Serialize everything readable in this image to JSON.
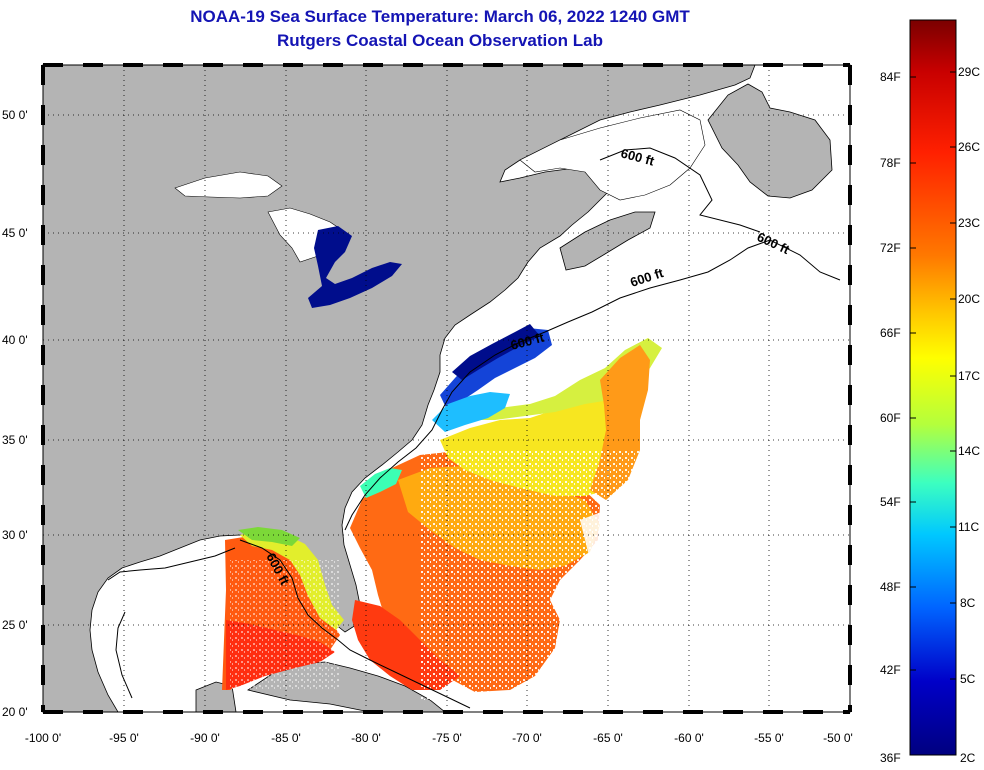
{
  "header": {
    "title": "NOAA-19 Sea Surface Temperature:  March 06, 2022 1240 GMT",
    "subtitle": "Rutgers Coastal Ocean Observation Lab"
  },
  "map": {
    "lat_labels": [
      "50 0'",
      "45 0'",
      "40 0'",
      "35 0'",
      "30 0'",
      "25 0'",
      "20 0'"
    ],
    "lon_labels": [
      "-100 0'",
      "-95 0'",
      "-90 0'",
      "-85 0'",
      "-80 0'",
      "-75 0'",
      "-70 0'",
      "-65 0'",
      "-60 0'",
      "-55 0'",
      "-50 0'"
    ],
    "contour_label": "600 ft",
    "land_color": "#b4b4b4",
    "no_data_color": "#ffffff"
  },
  "colorbar": {
    "fahrenheit_labels": [
      "84F",
      "78F",
      "72F",
      "66F",
      "60F",
      "54F",
      "48F",
      "42F",
      "36F"
    ],
    "celsius_labels": [
      "29C",
      "26C",
      "23C",
      "20C",
      "17C",
      "14C",
      "11C",
      "8C",
      "5C",
      "2C"
    ],
    "colors": [
      "#7a0000",
      "#c80000",
      "#ff2000",
      "#ff7800",
      "#ffc800",
      "#ffff00",
      "#b4ff3c",
      "#3cffc0",
      "#00c8ff",
      "#0064ff",
      "#0000c8",
      "#000080"
    ]
  }
}
